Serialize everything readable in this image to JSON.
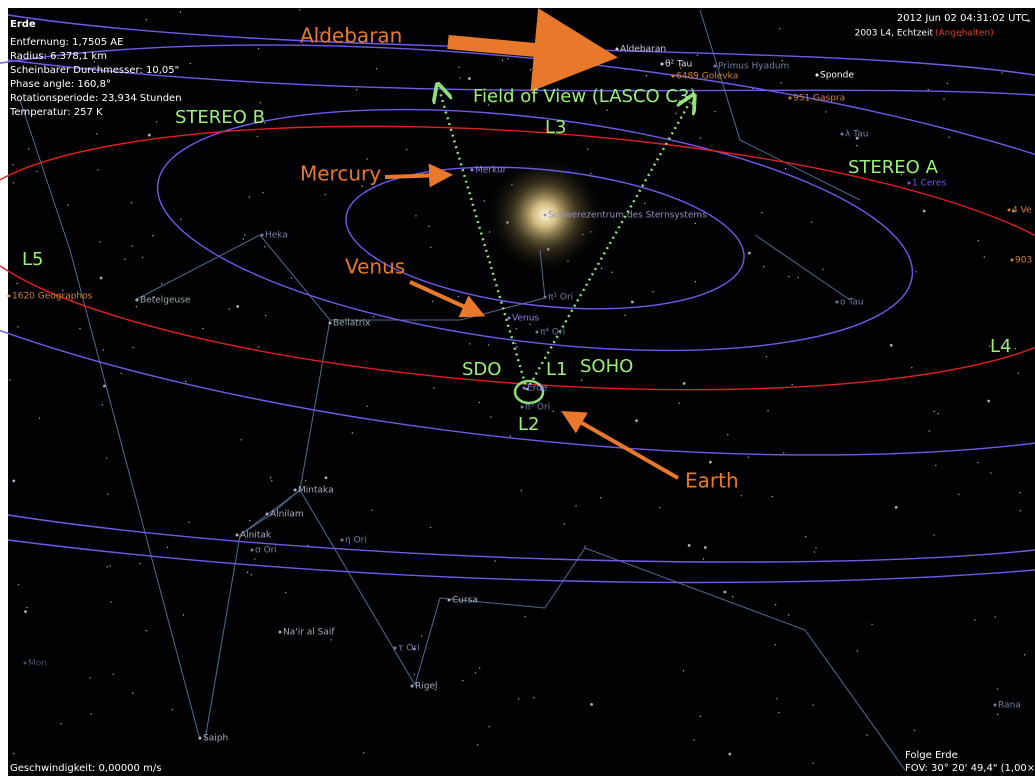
{
  "info_panel": {
    "title": "Erde",
    "lines": [
      "Entfernung: 1,7505 AE",
      "Radius: 6.378,1 km",
      "Scheinbarer Durchmesser: 10,05\"",
      "Phase angle: 160,8°",
      "Rotationsperiode: 23,934 Stunden",
      "Temperatur: 257 K"
    ]
  },
  "status": {
    "datetime": "2012 Jun 02 04:31:02 UTC",
    "mode": "2003 L4, Echtzeit",
    "paused": "(Angehalten)"
  },
  "annotations": {
    "aldebaran": "Aldebaran",
    "mercury": "Mercury",
    "venus": "Venus",
    "earth": "Earth",
    "stereo_b": "STEREO B",
    "stereo_a": "STEREO A",
    "fov": "Field of View (LASCO C3)",
    "l1": "L1",
    "l2": "L2",
    "l3": "L3",
    "l4": "L4",
    "l5": "L5",
    "sdo": "SDO",
    "soho": "SOHO"
  },
  "sky_labels": [
    "Aldebaran",
    "θ² Tau",
    "Primus Hyadum",
    "6489 Golevka",
    "951 Gaspra",
    "λ Tau",
    "1 Ceres",
    "4 Ve",
    "903",
    "Merkur",
    "Schwerezentrum des Sternsystems",
    "Heka",
    "Betelgeuse",
    "Bellatrix",
    "π¹ Ori",
    "Venus",
    "π⁴ Ori",
    "Erde",
    "π⁵ Ori",
    "ο Tau",
    "1620 Geographos",
    "Mintaka",
    "Alnilam",
    "Alnitak",
    "σ Ori",
    "η Ori",
    "Cursa",
    "Na'ir al Saif",
    "τ Ori",
    "Rigel",
    "Saiph",
    "Rana",
    "Mon",
    "Sponde"
  ],
  "footer": {
    "speed": "Geschwindigkeit: 0,00000 m/s",
    "follow": "Folge Erde",
    "fov": "FOV: 30° 20' 49,4\" (1,00×"
  }
}
